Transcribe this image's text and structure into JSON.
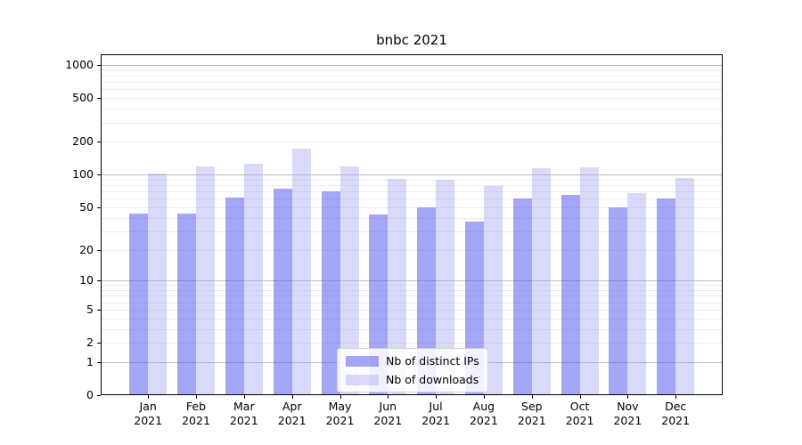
{
  "chart_data": {
    "type": "bar",
    "title": "bnbc 2021",
    "categories": [
      "Jan 2021",
      "Feb 2021",
      "Mar 2021",
      "Apr 2021",
      "May 2021",
      "Jun 2021",
      "Jul 2021",
      "Aug 2021",
      "Sep 2021",
      "Oct 2021",
      "Nov 2021",
      "Dec 2021"
    ],
    "series": [
      {
        "name": "Nb of distinct IPs",
        "color": "rgba(93,93,239,0.55)",
        "values": [
          44,
          44,
          61,
          74,
          70,
          43,
          50,
          37,
          60,
          65,
          50,
          60
        ]
      },
      {
        "name": "Nb of downloads",
        "color": "rgba(155,155,241,0.38)",
        "values": [
          102,
          118,
          125,
          172,
          118,
          91,
          90,
          79,
          114,
          116,
          67,
          93
        ]
      }
    ],
    "y_axis": {
      "scale": "log10(value+1)",
      "tick_values": [
        0,
        1,
        2,
        5,
        10,
        20,
        50,
        100,
        200,
        500,
        1000
      ],
      "top_value": 1250
    },
    "grid": {
      "major_values": [
        1,
        10,
        100,
        1000
      ],
      "minor_multiples": [
        2,
        3,
        4,
        5,
        6,
        7,
        8,
        9
      ],
      "major_color": "#bdbdbd",
      "minor_color": "#ececec"
    },
    "legend": {
      "position": "lower-center"
    }
  }
}
